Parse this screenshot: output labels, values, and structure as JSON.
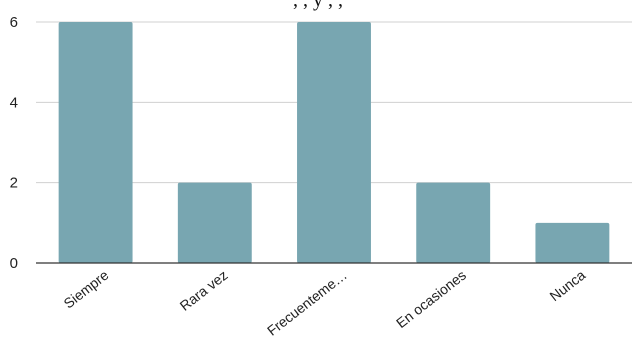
{
  "title_fragment": ", ,  y ,  ,",
  "chart_data": {
    "type": "bar",
    "categories": [
      "Siempre",
      "Rara vez",
      "Frecuenteme…",
      "En ocasiones",
      "Nunca"
    ],
    "values": [
      6,
      2,
      6,
      2,
      1
    ],
    "ylim": [
      0,
      6
    ],
    "yticks": [
      "0",
      "2",
      "4",
      "6"
    ],
    "grid": true,
    "legend": "none",
    "xlabel": "",
    "ylabel": "",
    "colors": {
      "bar": "#78a6b1",
      "grid": "#d0d0d0",
      "axis": "#333333"
    }
  }
}
